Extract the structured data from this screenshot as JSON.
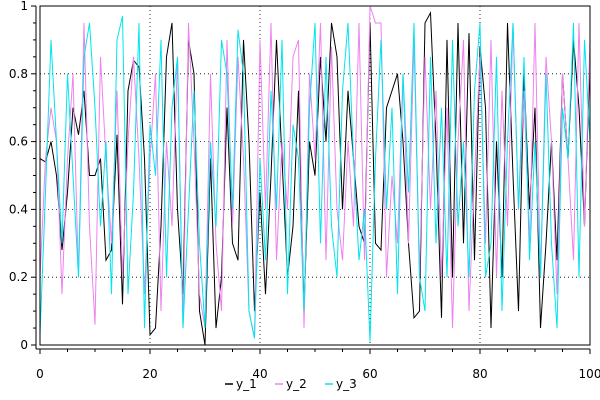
{
  "chart_data": {
    "type": "line",
    "title": "",
    "xlabel": "",
    "ylabel": "",
    "xlim": [
      0,
      100
    ],
    "ylim": [
      0,
      1
    ],
    "x_ticks": [
      0,
      20,
      40,
      60,
      80,
      100
    ],
    "y_ticks": [
      0,
      0.2,
      0.4,
      0.6,
      0.8,
      1
    ],
    "x_tick_labels": [
      "0",
      "20",
      "40",
      "60",
      "80",
      "100"
    ],
    "y_tick_labels": [
      "0",
      "0.2",
      "0.4",
      "0.6",
      "0.8",
      "1"
    ],
    "grid": true,
    "legend_position": "bottom-center",
    "x": [
      0,
      1,
      2,
      3,
      4,
      5,
      6,
      7,
      8,
      9,
      10,
      11,
      12,
      13,
      14,
      15,
      16,
      17,
      18,
      19,
      20,
      21,
      22,
      23,
      24,
      25,
      26,
      27,
      28,
      29,
      30,
      31,
      32,
      33,
      34,
      35,
      36,
      37,
      38,
      39,
      40,
      41,
      42,
      43,
      44,
      45,
      46,
      47,
      48,
      49,
      50,
      51,
      52,
      53,
      54,
      55,
      56,
      57,
      58,
      59,
      60,
      61,
      62,
      63,
      64,
      65,
      66,
      67,
      68,
      69,
      70,
      71,
      72,
      73,
      74,
      75,
      76,
      77,
      78,
      79,
      80,
      81,
      82,
      83,
      84,
      85,
      86,
      87,
      88,
      89,
      90,
      91,
      92,
      93,
      94,
      95,
      96,
      97,
      98,
      99,
      100
    ],
    "series": [
      {
        "name": "y_1",
        "color": "#000000",
        "values": [
          0.55,
          0.54,
          0.6,
          0.5,
          0.28,
          0.45,
          0.7,
          0.62,
          0.75,
          0.5,
          0.5,
          0.55,
          0.25,
          0.28,
          0.62,
          0.12,
          0.75,
          0.84,
          0.82,
          0.55,
          0.03,
          0.05,
          0.35,
          0.85,
          0.95,
          0.4,
          0.15,
          0.9,
          0.8,
          0.1,
          0.0,
          0.55,
          0.05,
          0.2,
          0.7,
          0.3,
          0.25,
          0.9,
          0.6,
          0.1,
          0.45,
          0.15,
          0.5,
          0.9,
          0.55,
          0.2,
          0.35,
          0.75,
          0.1,
          0.6,
          0.5,
          0.85,
          0.6,
          0.95,
          0.85,
          0.4,
          0.75,
          0.55,
          0.35,
          0.3,
          0.95,
          0.3,
          0.28,
          0.7,
          0.75,
          0.8,
          0.6,
          0.3,
          0.08,
          0.1,
          0.95,
          0.98,
          0.6,
          0.08,
          0.9,
          0.2,
          0.95,
          0.3,
          0.92,
          0.25,
          0.88,
          0.7,
          0.05,
          0.6,
          0.2,
          0.95,
          0.5,
          0.1,
          0.8,
          0.4,
          0.7,
          0.05,
          0.3,
          0.6,
          0.25,
          0.8,
          0.55,
          0.9,
          0.7,
          0.35,
          0.85
        ]
      },
      {
        "name": "y_2",
        "color": "#ee82ee",
        "values": [
          0.2,
          0.55,
          0.7,
          0.6,
          0.15,
          0.55,
          0.8,
          0.2,
          0.95,
          0.35,
          0.06,
          0.85,
          0.55,
          0.3,
          0.75,
          0.2,
          0.6,
          0.85,
          0.55,
          0.15,
          0.55,
          0.8,
          0.1,
          0.6,
          0.35,
          0.85,
          0.05,
          0.95,
          0.6,
          0.15,
          0.05,
          0.8,
          0.3,
          0.1,
          0.9,
          0.35,
          0.85,
          0.55,
          0.1,
          0.02,
          0.9,
          0.4,
          0.95,
          0.25,
          0.6,
          0.4,
          0.85,
          0.9,
          0.05,
          0.8,
          0.55,
          0.95,
          0.25,
          0.88,
          0.4,
          0.25,
          0.6,
          0.35,
          0.95,
          0.25,
          1.0,
          0.95,
          0.95,
          0.2,
          0.5,
          0.3,
          0.8,
          0.3,
          0.9,
          0.2,
          0.85,
          0.4,
          0.75,
          0.2,
          0.7,
          0.05,
          0.6,
          0.9,
          0.1,
          0.5,
          0.85,
          0.3,
          0.9,
          0.2,
          0.75,
          0.35,
          0.95,
          0.4,
          0.75,
          0.3,
          0.95,
          0.2,
          0.85,
          0.6,
          0.15,
          0.8,
          0.55,
          0.25,
          0.95,
          0.35,
          0.9
        ]
      },
      {
        "name": "y_3",
        "color": "#00e5ee",
        "values": [
          0.03,
          0.45,
          0.9,
          0.6,
          0.3,
          0.8,
          0.5,
          0.2,
          0.85,
          0.95,
          0.7,
          0.35,
          0.6,
          0.15,
          0.9,
          0.97,
          0.15,
          0.45,
          0.95,
          0.05,
          0.65,
          0.5,
          0.9,
          0.2,
          0.7,
          0.85,
          0.05,
          0.4,
          0.75,
          0.3,
          0.05,
          0.6,
          0.35,
          0.9,
          0.8,
          0.4,
          0.93,
          0.8,
          0.1,
          0.02,
          0.55,
          0.25,
          0.75,
          0.4,
          0.9,
          0.15,
          0.65,
          0.55,
          0.1,
          0.7,
          0.95,
          0.3,
          0.85,
          0.35,
          0.2,
          0.75,
          0.95,
          0.55,
          0.25,
          0.4,
          0.01,
          0.55,
          0.9,
          0.4,
          0.7,
          0.15,
          0.8,
          0.45,
          0.95,
          0.2,
          0.1,
          0.85,
          0.3,
          0.7,
          0.2,
          0.9,
          0.35,
          0.6,
          0.2,
          0.75,
          0.95,
          0.2,
          0.3,
          0.85,
          0.1,
          0.6,
          0.95,
          0.4,
          0.85,
          0.25,
          0.6,
          0.2,
          0.8,
          0.3,
          0.05,
          0.7,
          0.55,
          0.95,
          0.2,
          0.9,
          0.6
        ]
      }
    ]
  }
}
